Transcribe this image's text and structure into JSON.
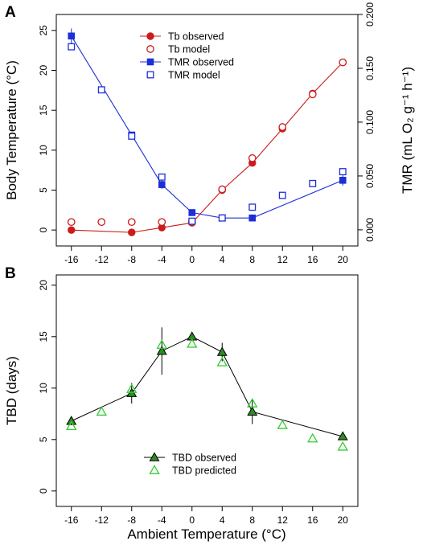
{
  "figure": {
    "panel_a_letter": "A",
    "panel_b_letter": "B",
    "shared_xlabel": "Ambient Temperature (°C)"
  },
  "chart_data": [
    {
      "type": "line",
      "panel": "A",
      "xlabel": "",
      "ylabel": "Body Temperature (°C)",
      "y2label": "TMR (mL O₂ g⁻¹ h⁻¹)",
      "x_ticks": [
        -16,
        -12,
        -8,
        -4,
        0,
        4,
        8,
        12,
        16,
        20
      ],
      "y_ticks": [
        0,
        5,
        10,
        15,
        20,
        25
      ],
      "y2_ticks": [
        "0.000",
        "0.050",
        "0.100",
        "0.150",
        "0.200"
      ],
      "xlim": [
        -18,
        22
      ],
      "ylim": [
        -2,
        27
      ],
      "y2lim": [
        -0.015,
        0.2
      ],
      "legend_position": "top-center",
      "grid": false,
      "colors": {
        "tb": "#cc1b1b",
        "tmr": "#1d2fd6"
      },
      "series": [
        {
          "name": "Tb observed",
          "axis": "left",
          "style": "filled-circle-line",
          "x": [
            -16,
            -8,
            -4,
            0,
            4,
            8,
            12,
            16,
            20
          ],
          "values": [
            0.0,
            -0.3,
            0.3,
            0.9,
            5.0,
            8.4,
            12.7,
            17.1,
            21.0
          ]
        },
        {
          "name": "Tb model",
          "axis": "left",
          "style": "open-circle",
          "x": [
            -16,
            -12,
            -8,
            -4,
            0,
            4,
            8,
            12,
            16,
            20
          ],
          "values": [
            1.0,
            1.0,
            1.0,
            1.0,
            1.0,
            5.1,
            9.0,
            12.9,
            17.0,
            21.0
          ]
        },
        {
          "name": "TMR observed",
          "axis": "right",
          "style": "filled-square-line",
          "x": [
            -16,
            -8,
            -4,
            0,
            4,
            8,
            20
          ],
          "values": [
            0.18,
            0.088,
            0.042,
            0.016,
            0.011,
            0.011,
            0.046
          ],
          "error": [
            0.007,
            0.003,
            0.004,
            0.002,
            0.0,
            0.0,
            0.005
          ]
        },
        {
          "name": "TMR model",
          "axis": "right",
          "style": "open-square",
          "x": [
            -16,
            -12,
            -8,
            -4,
            0,
            4,
            8,
            12,
            16,
            20
          ],
          "values": [
            0.17,
            0.13,
            0.087,
            0.049,
            0.008,
            0.011,
            0.021,
            0.032,
            0.043,
            0.054
          ]
        }
      ]
    },
    {
      "type": "line",
      "panel": "B",
      "xlabel": "Ambient Temperature (°C)",
      "ylabel": "TBD (days)",
      "x_ticks": [
        -16,
        -12,
        -8,
        -4,
        0,
        4,
        8,
        12,
        16,
        20
      ],
      "y_ticks": [
        0,
        5,
        10,
        15,
        20
      ],
      "xlim": [
        -18,
        22
      ],
      "ylim": [
        -1.5,
        21
      ],
      "legend_position": "bottom-center",
      "grid": false,
      "colors": {
        "fill": "#2e8b22",
        "open": "#33cc33"
      },
      "series": [
        {
          "name": "TBD observed",
          "style": "filled-triangle-line",
          "x": [
            -16,
            -8,
            -4,
            0,
            4,
            8,
            20
          ],
          "values": [
            6.8,
            9.5,
            13.6,
            15.0,
            13.5,
            7.7,
            5.3
          ],
          "error": [
            0.4,
            1.0,
            2.3,
            0.4,
            0.9,
            1.2,
            0.0
          ]
        },
        {
          "name": "TBD predicted",
          "style": "open-triangle",
          "x": [
            -16,
            -12,
            -8,
            -4,
            0,
            4,
            8,
            12,
            16,
            20
          ],
          "values": [
            6.3,
            7.7,
            9.9,
            14.2,
            14.3,
            12.5,
            8.5,
            6.4,
            5.1,
            4.3
          ]
        }
      ]
    }
  ]
}
